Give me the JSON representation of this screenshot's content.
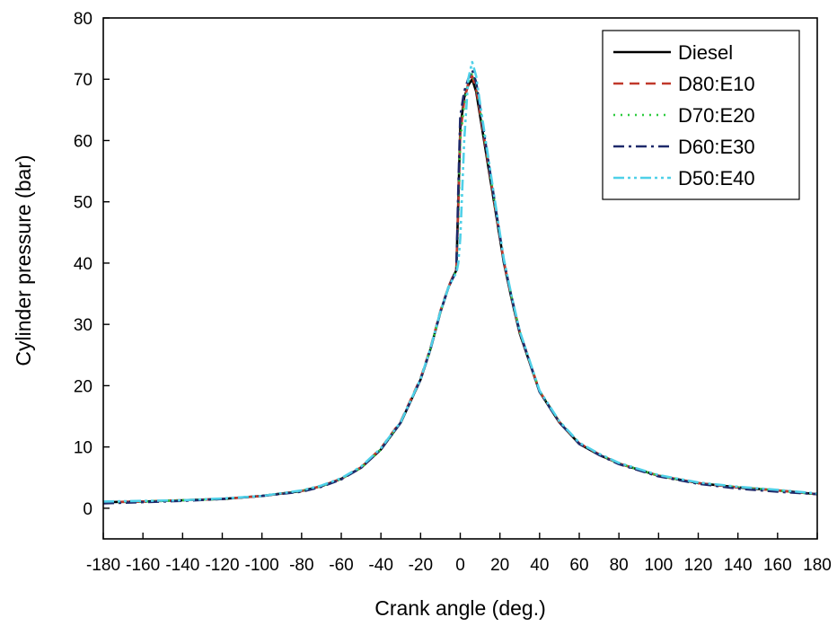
{
  "chart_data": {
    "type": "line",
    "title": "",
    "xlabel": "Crank angle (deg.)",
    "ylabel": "Cylinder pressure (bar)",
    "xlim": [
      -180,
      180
    ],
    "ylim": [
      -5,
      80
    ],
    "xticks": [
      -180,
      -160,
      -140,
      -120,
      -100,
      -80,
      -60,
      -40,
      -20,
      0,
      20,
      40,
      60,
      80,
      100,
      120,
      140,
      160,
      180
    ],
    "yticks": [
      0,
      10,
      20,
      30,
      40,
      50,
      60,
      70,
      80
    ],
    "grid": false,
    "legend_position": "top-right",
    "series": [
      {
        "name": "Diesel",
        "color": "#000000",
        "dash": "solid",
        "x": [
          -180,
          -160,
          -140,
          -120,
          -100,
          -80,
          -70,
          -60,
          -50,
          -40,
          -30,
          -20,
          -15,
          -10,
          -6,
          -4,
          -3,
          -2,
          -1,
          0,
          2,
          4,
          6,
          8,
          10,
          14,
          18,
          22,
          26,
          30,
          40,
          50,
          60,
          70,
          80,
          100,
          120,
          140,
          160,
          180
        ],
        "y": [
          1.0,
          1.1,
          1.3,
          1.5,
          2.0,
          2.8,
          3.6,
          4.8,
          6.6,
          9.6,
          14.0,
          21.0,
          26.0,
          32.0,
          36.0,
          37.5,
          38.2,
          38.8,
          50.0,
          62.0,
          67.0,
          69.0,
          70.0,
          68.0,
          64.0,
          56.0,
          48.0,
          40.0,
          34.0,
          28.5,
          19.0,
          14.0,
          10.5,
          8.7,
          7.3,
          5.3,
          4.1,
          3.4,
          2.9,
          2.3
        ]
      },
      {
        "name": "D80:E10",
        "color": "#c0392b",
        "dash": "dashed",
        "x": [
          -180,
          -160,
          -140,
          -120,
          -100,
          -80,
          -70,
          -60,
          -50,
          -40,
          -30,
          -20,
          -15,
          -10,
          -6,
          -4,
          -3,
          -2,
          -1,
          0,
          2,
          4,
          6,
          8,
          10,
          14,
          18,
          22,
          26,
          30,
          40,
          50,
          60,
          70,
          80,
          100,
          120,
          140,
          160,
          180
        ],
        "y": [
          1.0,
          1.1,
          1.3,
          1.5,
          2.0,
          2.8,
          3.6,
          4.8,
          6.7,
          9.8,
          14.2,
          21.2,
          26.2,
          32.2,
          36.1,
          37.6,
          38.3,
          38.9,
          49.0,
          61.0,
          66.5,
          69.3,
          70.5,
          68.5,
          64.5,
          56.5,
          48.3,
          40.2,
          34.2,
          28.7,
          19.1,
          14.1,
          10.6,
          8.8,
          7.3,
          5.3,
          4.1,
          3.4,
          2.9,
          2.3
        ]
      },
      {
        "name": "D70:E20",
        "color": "#2ecc40",
        "dash": "dotted",
        "x": [
          -180,
          -160,
          -140,
          -120,
          -100,
          -80,
          -70,
          -60,
          -50,
          -40,
          -30,
          -20,
          -15,
          -10,
          -6,
          -4,
          -3,
          -2,
          -1,
          0,
          2,
          4,
          6,
          8,
          10,
          14,
          18,
          22,
          26,
          30,
          40,
          50,
          60,
          70,
          80,
          100,
          120,
          140,
          160,
          180
        ],
        "y": [
          1.0,
          1.1,
          1.3,
          1.5,
          2.0,
          2.8,
          3.6,
          4.8,
          6.6,
          9.6,
          14.0,
          21.0,
          26.0,
          32.0,
          36.0,
          37.4,
          38.1,
          38.7,
          47.0,
          60.0,
          66.0,
          69.5,
          71.0,
          69.0,
          65.0,
          56.8,
          48.5,
          40.3,
          34.3,
          28.8,
          19.1,
          14.1,
          10.6,
          8.8,
          7.3,
          5.3,
          4.1,
          3.4,
          2.9,
          2.3
        ]
      },
      {
        "name": "D60:E30",
        "color": "#1f2a6b",
        "dash": "dashdot",
        "x": [
          -180,
          -160,
          -140,
          -120,
          -100,
          -80,
          -70,
          -60,
          -50,
          -40,
          -30,
          -20,
          -15,
          -10,
          -6,
          -4,
          -3,
          -2,
          -1,
          0,
          2,
          4,
          6,
          8,
          10,
          14,
          18,
          22,
          26,
          30,
          40,
          50,
          60,
          70,
          80,
          100,
          120,
          140,
          160,
          180
        ],
        "y": [
          0.8,
          1.0,
          1.2,
          1.5,
          2.0,
          2.7,
          3.5,
          4.7,
          6.6,
          9.6,
          14.0,
          21.0,
          26.0,
          32.0,
          36.0,
          37.4,
          38.0,
          38.6,
          52.0,
          64.0,
          68.0,
          70.0,
          71.5,
          69.5,
          65.3,
          57.0,
          48.6,
          40.3,
          34.3,
          28.7,
          19.0,
          14.0,
          10.5,
          8.7,
          7.2,
          5.2,
          4.0,
          3.2,
          2.7,
          2.3
        ]
      },
      {
        "name": "D50:E40",
        "color": "#4fd0e8",
        "dash": "dashdotdot",
        "x": [
          -180,
          -160,
          -140,
          -120,
          -100,
          -80,
          -70,
          -60,
          -50,
          -40,
          -30,
          -20,
          -15,
          -10,
          -6,
          -4,
          -3,
          -2,
          -1,
          0,
          2,
          4,
          6,
          8,
          10,
          14,
          18,
          22,
          26,
          30,
          40,
          50,
          60,
          70,
          80,
          100,
          120,
          140,
          160,
          180
        ],
        "y": [
          1.1,
          1.2,
          1.3,
          1.6,
          2.0,
          2.9,
          3.7,
          4.9,
          6.8,
          9.8,
          14.1,
          21.1,
          26.1,
          32.1,
          36.0,
          37.3,
          37.9,
          38.3,
          40.0,
          44.0,
          60.0,
          70.0,
          72.8,
          70.5,
          66.0,
          57.5,
          49.0,
          40.6,
          34.5,
          28.9,
          19.2,
          14.2,
          10.7,
          8.9,
          7.4,
          5.4,
          4.2,
          3.5,
          3.0,
          2.4
        ]
      }
    ]
  }
}
